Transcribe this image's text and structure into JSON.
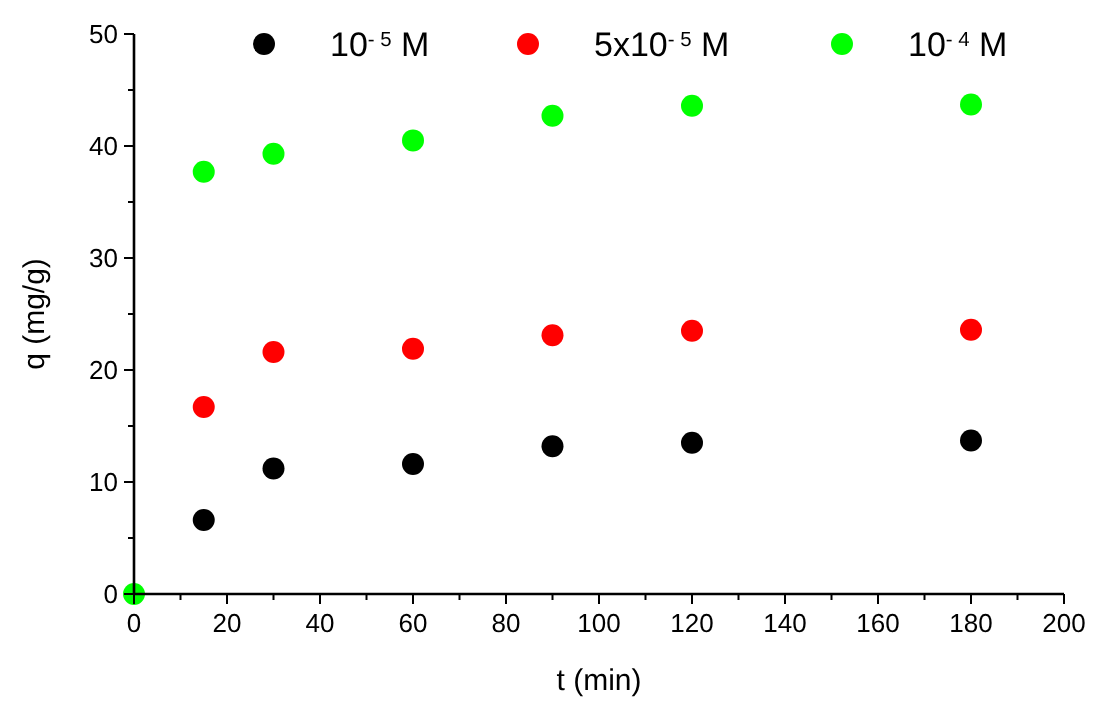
{
  "chart_data": {
    "type": "scatter",
    "xlabel": "t (min)",
    "ylabel": "q (mg/g)",
    "marker": "circle",
    "legend": "top right",
    "grid": false,
    "xlim": [
      0,
      200
    ],
    "ylim": [
      0,
      50
    ],
    "xticks": [
      0,
      {
        "value": 10,
        "label": null
      },
      20,
      {
        "value": 30,
        "label": null
      },
      40,
      {
        "value": 50,
        "label": null
      },
      60,
      {
        "value": 70,
        "label": null
      },
      80,
      {
        "value": 90,
        "label": null
      },
      100,
      {
        "value": 110,
        "label": null
      },
      120,
      {
        "value": 130,
        "label": null
      },
      140,
      {
        "value": 150,
        "label": null
      },
      160,
      {
        "value": 170,
        "label": null
      },
      180,
      {
        "value": 190,
        "label": null
      },
      200
    ],
    "yticks": [
      0,
      {
        "value": 5,
        "label": null
      },
      10,
      {
        "value": 15,
        "label": null
      },
      20,
      {
        "value": 25,
        "label": null
      },
      30,
      {
        "value": 35,
        "label": null
      },
      40,
      {
        "value": 45,
        "label": null
      },
      50
    ],
    "series": [
      {
        "name": "10$^{- 5}$ M",
        "color": "#000000",
        "x": [
          15,
          30,
          60,
          90,
          120,
          180
        ],
        "values": [
          6.6,
          11.2,
          11.6,
          13.2,
          13.5,
          13.7
        ]
      },
      {
        "name": "5x10$^{- 5}$ M",
        "color": "#ff0000",
        "x": [
          15,
          30,
          60,
          90,
          120,
          180
        ],
        "values": [
          16.7,
          21.6,
          21.9,
          23.1,
          23.5,
          23.6
        ]
      },
      {
        "name": "10$^{- 4}$ M",
        "color": "#00ff00",
        "x": [
          0,
          15,
          30,
          60,
          90,
          120,
          180
        ],
        "values": [
          0,
          37.7,
          39.3,
          40.5,
          42.7,
          43.6,
          43.7
        ]
      }
    ]
  }
}
